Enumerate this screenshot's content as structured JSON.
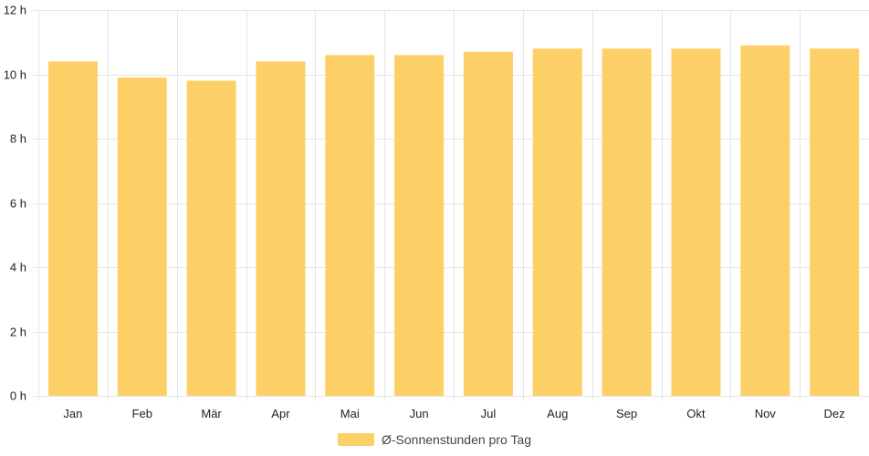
{
  "chart_data": {
    "type": "bar",
    "categories": [
      "Jan",
      "Feb",
      "Mär",
      "Apr",
      "Mai",
      "Jun",
      "Jul",
      "Aug",
      "Sep",
      "Okt",
      "Nov",
      "Dez"
    ],
    "series": [
      {
        "name": "Ø-Sonnenstunden pro Tag",
        "values": [
          10.4,
          9.9,
          9.8,
          10.4,
          10.6,
          10.6,
          10.7,
          10.8,
          10.8,
          10.8,
          10.9,
          10.8
        ],
        "color": "#fdd067"
      }
    ],
    "ylim": [
      0,
      12
    ],
    "yticks": [
      0,
      2,
      4,
      6,
      8,
      10,
      12
    ],
    "ytick_suffix": " h",
    "ytick_labels": [
      "0 h",
      "2 h",
      "4 h",
      "6 h",
      "8 h",
      "10 h",
      "12 h"
    ],
    "grid": true,
    "grid_color": "#e6e6e6",
    "legend_position": "bottom"
  }
}
